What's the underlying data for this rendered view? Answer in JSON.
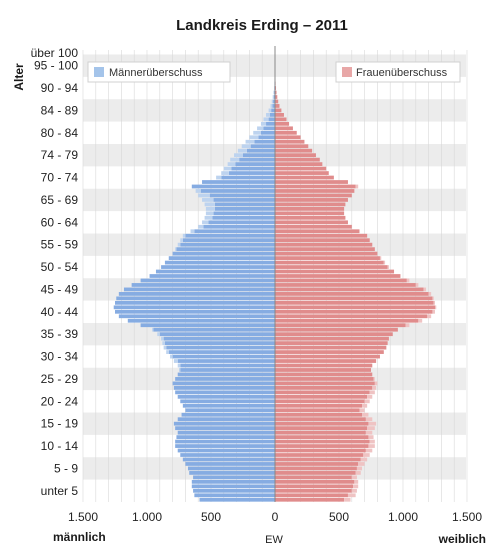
{
  "chart_data": {
    "type": "bar",
    "subtype": "population-pyramid",
    "title": "Landkreis Erding – 2011",
    "ylabel": "Alter",
    "xlabel": "EW",
    "left_label": "männlich",
    "right_label": "weiblich",
    "x_ticks": [
      "1.500",
      "1.000",
      "500",
      "0",
      "500",
      "1.000",
      "1.500"
    ],
    "xlim": [
      -1500,
      1500
    ],
    "grid": true,
    "legend": {
      "placement": "top",
      "entries": [
        {
          "key": "male_surplus",
          "label": "Männerüberschuss",
          "color": "#a4c4ea"
        },
        {
          "key": "female_surplus",
          "label": "Frauenüberschuss",
          "color": "#e8a7a7"
        }
      ]
    },
    "colors": {
      "male": "#86ace2",
      "female": "#e08c8c",
      "male_surplus": "#bdd3ef",
      "female_surplus": "#efc3c3",
      "axis_line": "#888888",
      "band": "#ececec",
      "grid": "#d8d8d8"
    },
    "age_labels": [
      "unter 5",
      "5 - 9",
      "10 - 14",
      "15 - 19",
      "20 - 24",
      "25 - 29",
      "30 - 34",
      "35 - 39",
      "40 - 44",
      "45 - 49",
      "50 - 54",
      "55 - 59",
      "60 - 64",
      "65 - 69",
      "70 - 74",
      "74 - 79",
      "80 - 84",
      "84 - 89",
      "90 - 94",
      "95 - 100",
      "über 100"
    ],
    "ages": [
      0,
      1,
      2,
      3,
      4,
      5,
      6,
      7,
      8,
      9,
      10,
      11,
      12,
      13,
      14,
      15,
      16,
      17,
      18,
      19,
      20,
      21,
      22,
      23,
      24,
      25,
      26,
      27,
      28,
      29,
      30,
      31,
      32,
      33,
      34,
      35,
      36,
      37,
      38,
      39,
      40,
      41,
      42,
      43,
      44,
      45,
      46,
      47,
      48,
      49,
      50,
      51,
      52,
      53,
      54,
      55,
      56,
      57,
      58,
      59,
      60,
      61,
      62,
      63,
      64,
      65,
      66,
      67,
      68,
      69,
      70,
      71,
      72,
      73,
      74,
      75,
      76,
      77,
      78,
      79,
      80,
      81,
      82,
      83,
      84,
      85,
      86,
      87,
      88,
      89,
      90,
      91,
      92,
      93,
      94,
      95,
      96,
      97,
      98,
      99,
      100
    ],
    "series": [
      {
        "name": "männlich",
        "values": [
          590,
          630,
          640,
          650,
          650,
          640,
          670,
          680,
          700,
          720,
          740,
          760,
          780,
          780,
          770,
          760,
          780,
          790,
          760,
          730,
          700,
          720,
          740,
          760,
          780,
          790,
          800,
          780,
          760,
          740,
          740,
          760,
          800,
          830,
          850,
          860,
          870,
          900,
          950,
          1050,
          1150,
          1220,
          1250,
          1260,
          1250,
          1240,
          1220,
          1180,
          1120,
          1050,
          980,
          930,
          890,
          860,
          830,
          800,
          770,
          740,
          720,
          700,
          630,
          560,
          520,
          490,
          480,
          470,
          470,
          480,
          510,
          580,
          650,
          570,
          420,
          360,
          340,
          310,
          280,
          250,
          220,
          190,
          160,
          130,
          110,
          90,
          70,
          50,
          40,
          30,
          20,
          15,
          10,
          7,
          5,
          3,
          2,
          1,
          1,
          0,
          0,
          0,
          0
        ]
      },
      {
        "name": "weiblich",
        "values": [
          540,
          570,
          600,
          610,
          620,
          600,
          630,
          640,
          650,
          670,
          690,
          710,
          730,
          740,
          730,
          710,
          720,
          730,
          710,
          680,
          660,
          680,
          700,
          720,
          740,
          760,
          780,
          770,
          760,
          750,
          760,
          790,
          820,
          850,
          870,
          880,
          890,
          920,
          960,
          1020,
          1120,
          1190,
          1230,
          1250,
          1240,
          1230,
          1200,
          1160,
          1100,
          1030,
          980,
          930,
          880,
          850,
          820,
          800,
          780,
          760,
          740,
          720,
          660,
          600,
          570,
          550,
          540,
          540,
          550,
          570,
          600,
          620,
          630,
          570,
          460,
          420,
          400,
          370,
          350,
          320,
          290,
          260,
          230,
          200,
          170,
          140,
          110,
          90,
          70,
          50,
          35,
          25,
          18,
          12,
          8,
          5,
          3,
          2,
          1,
          1,
          0,
          0,
          0
        ]
      }
    ]
  }
}
